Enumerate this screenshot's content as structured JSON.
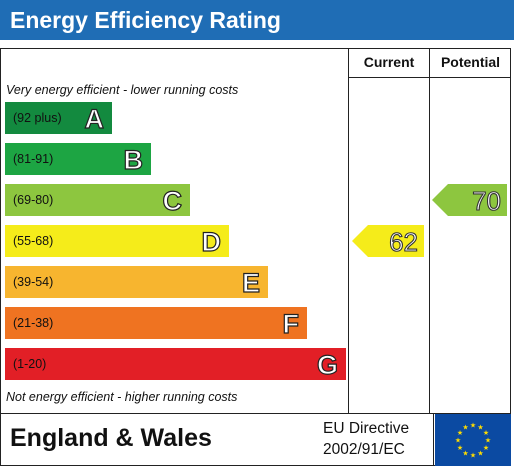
{
  "header": {
    "title": "Energy Efficiency Rating"
  },
  "columns": {
    "current": "Current",
    "potential": "Potential"
  },
  "notes": {
    "top": "Very energy efficient - lower running costs",
    "bottom": "Not energy efficient - higher running costs"
  },
  "bands": [
    {
      "range": "(92 plus)",
      "letter": "A",
      "color": "#138a3f"
    },
    {
      "range": "(81-91)",
      "letter": "B",
      "color": "#1da543"
    },
    {
      "range": "(69-80)",
      "letter": "C",
      "color": "#8dc63f"
    },
    {
      "range": "(55-68)",
      "letter": "D",
      "color": "#f5ec1a"
    },
    {
      "range": "(39-54)",
      "letter": "E",
      "color": "#f7b52f"
    },
    {
      "range": "(21-38)",
      "letter": "F",
      "color": "#ef7321"
    },
    {
      "range": "(1-20)",
      "letter": "G",
      "color": "#e21f26"
    }
  ],
  "ratings": {
    "current": {
      "value": "62",
      "band": "D",
      "color": "#f5ec1a"
    },
    "potential": {
      "value": "70",
      "band": "C",
      "color": "#8dc63f"
    }
  },
  "footer": {
    "country": "England & Wales",
    "directive_line1": "EU Directive",
    "directive_line2": "2002/91/EC",
    "flag_color": "#0b4aa2",
    "star_color": "#ffdd00"
  }
}
